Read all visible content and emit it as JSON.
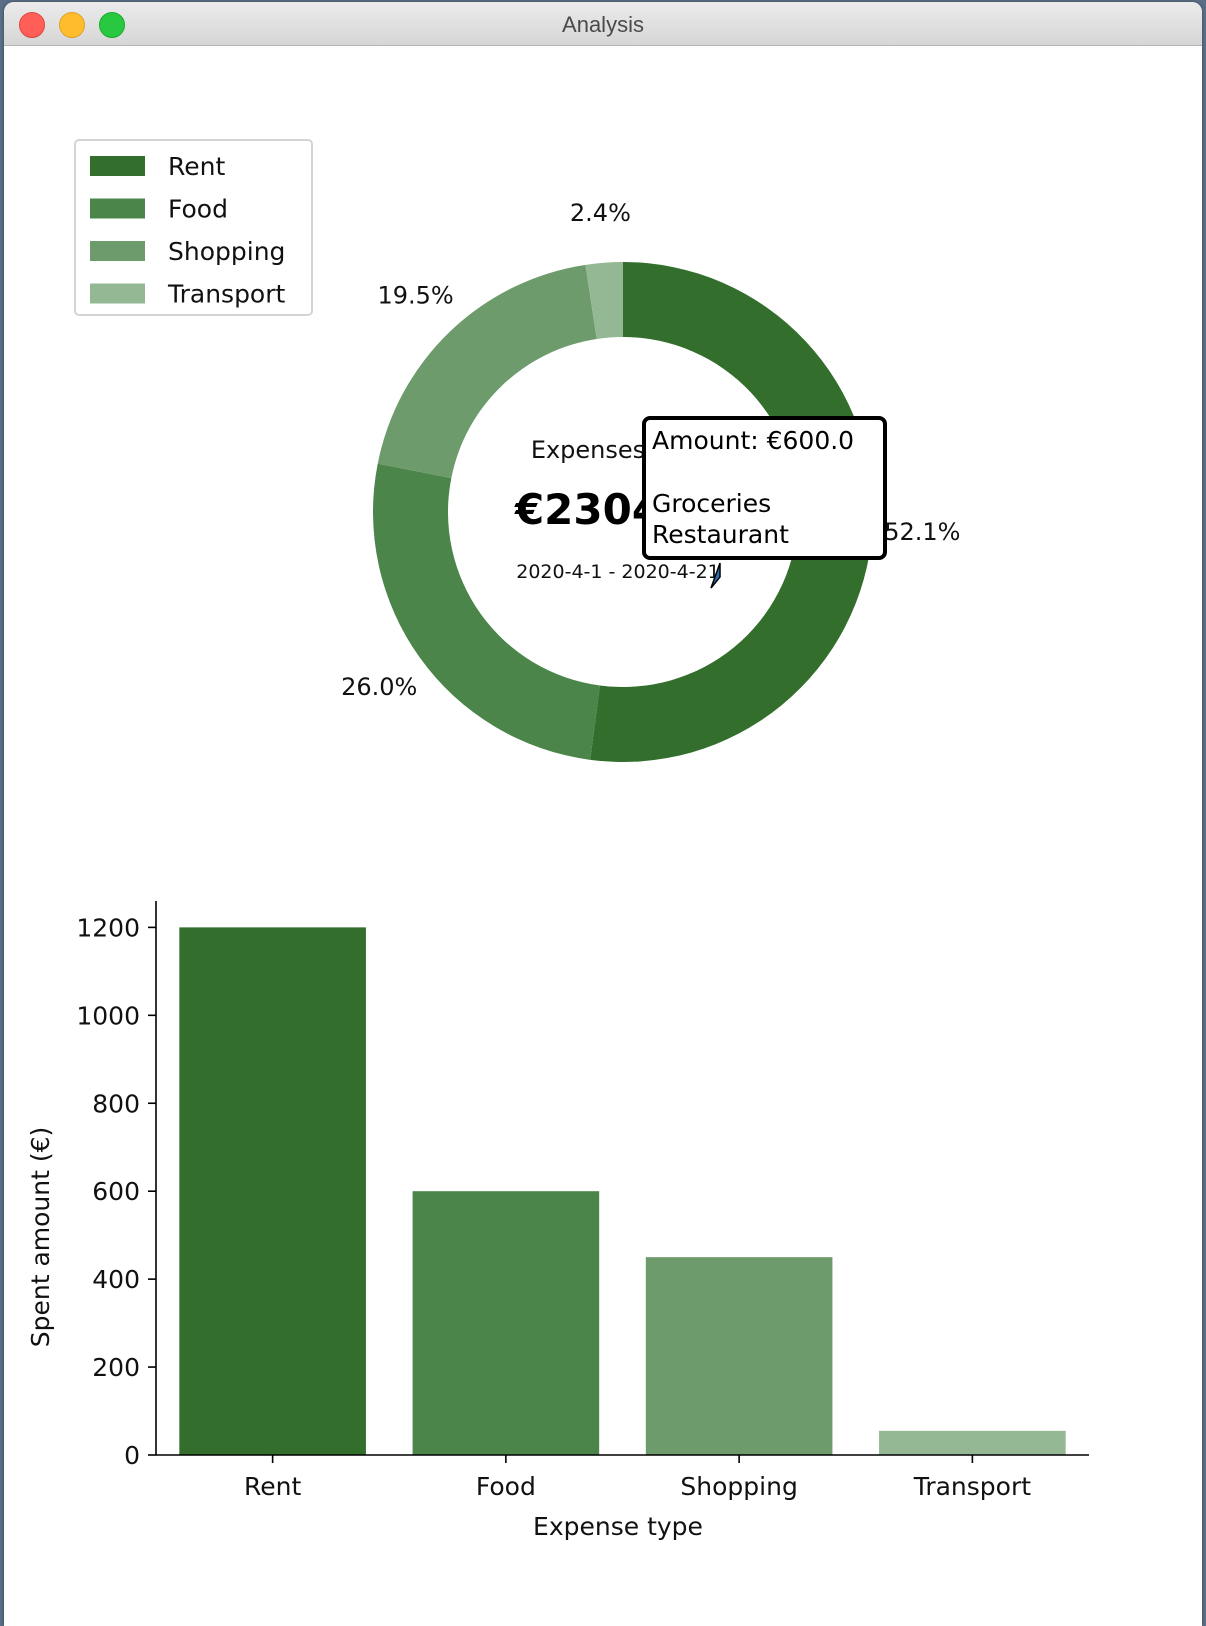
{
  "window": {
    "title": "Analysis"
  },
  "chart_data": [
    {
      "type": "pie",
      "variant": "donut",
      "categories": [
        "Rent",
        "Food",
        "Shopping",
        "Transport"
      ],
      "values": [
        52.1,
        26.0,
        19.5,
        2.4
      ],
      "value_labels": [
        "52.1%",
        "26.0%",
        "19.5%",
        "2.4%"
      ],
      "colors": [
        "#336e2d",
        "#4b8549",
        "#6d9b6c",
        "#95b894"
      ],
      "legend": {
        "entries": [
          "Rent",
          "Food",
          "Shopping",
          "Transport"
        ],
        "placement": "top-left"
      },
      "center": {
        "label": "Expenses",
        "total": "€2304",
        "period": "2020-4-1 - 2020-4-21"
      },
      "tooltip": {
        "line1": "Amount: €600.0",
        "line2": "",
        "line3": "Groceries",
        "line4": "Restaurant"
      }
    },
    {
      "type": "bar",
      "categories": [
        "Rent",
        "Food",
        "Shopping",
        "Transport"
      ],
      "values": [
        1200,
        600,
        450,
        55
      ],
      "colors": [
        "#336e2d",
        "#4b8549",
        "#6d9b6c",
        "#95b894"
      ],
      "xlabel": "Expense type",
      "ylabel": "Spent amount (€)",
      "ylim": [
        0,
        1260
      ],
      "yticks": [
        0,
        200,
        400,
        600,
        800,
        1000,
        1200
      ],
      "grid": false
    }
  ]
}
